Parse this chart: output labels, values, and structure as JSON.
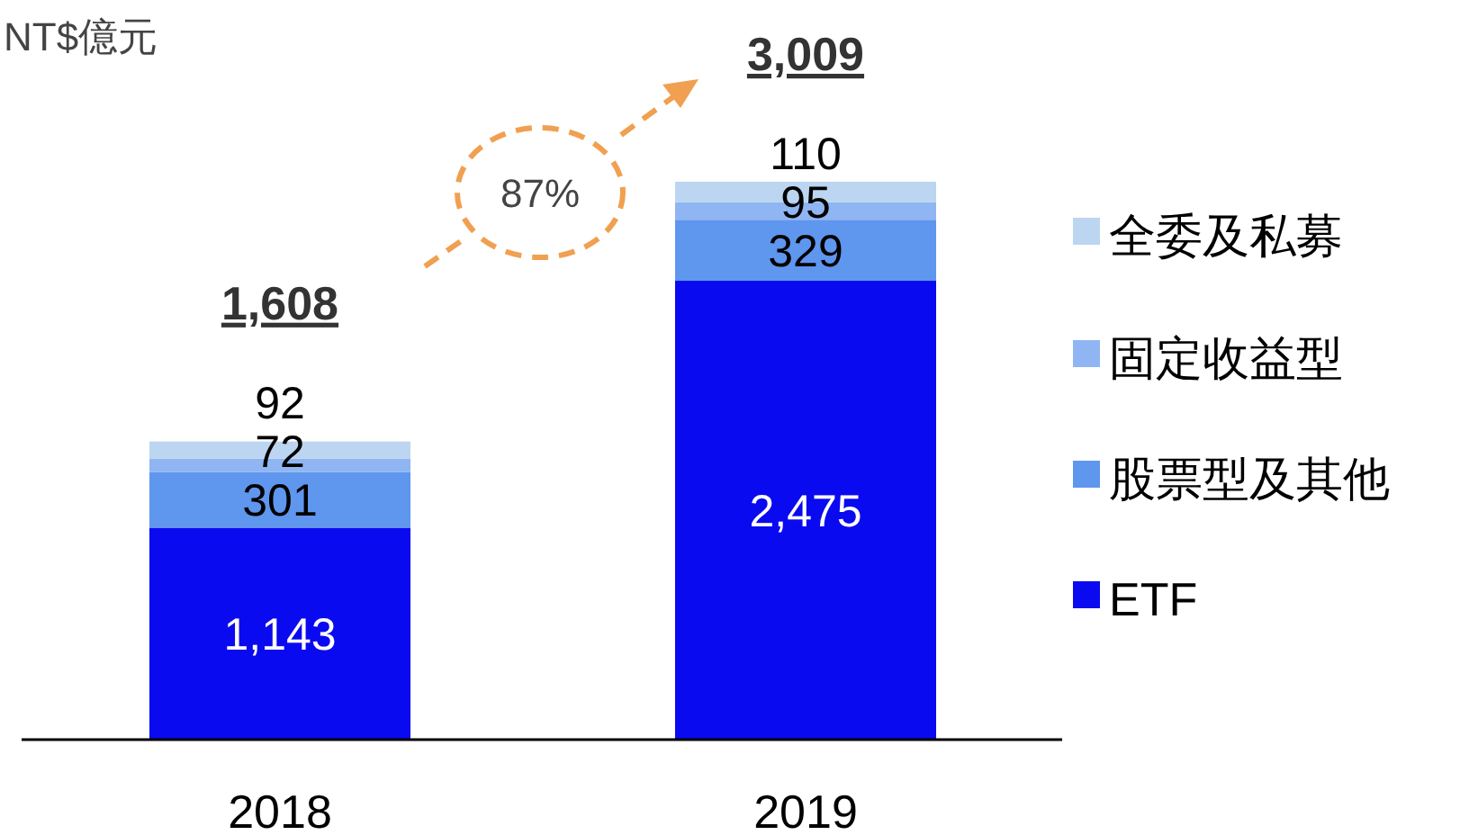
{
  "chart_data": {
    "type": "bar",
    "stacked": true,
    "ylabel": "NT$億元",
    "categories": [
      "2018",
      "2019"
    ],
    "series": [
      {
        "name": "ETF",
        "color": "#0a0af0",
        "values": [
          1143,
          2475
        ],
        "value_labels": [
          "1,143",
          "2,475"
        ]
      },
      {
        "name": "股票型及其他",
        "color": "#5f96ee",
        "values": [
          301,
          329
        ],
        "value_labels": [
          "301",
          "329"
        ]
      },
      {
        "name": "固定收益型",
        "color": "#8fb6f2",
        "values": [
          72,
          95
        ],
        "value_labels": [
          "72",
          "95"
        ]
      },
      {
        "name": "全委及私募",
        "color": "#bcd5f0",
        "values": [
          92,
          110
        ],
        "value_labels": [
          "92",
          "110"
        ]
      }
    ],
    "totals": [
      "1,608",
      "3,009"
    ],
    "annotations": [
      "87%"
    ],
    "legend": "right"
  }
}
